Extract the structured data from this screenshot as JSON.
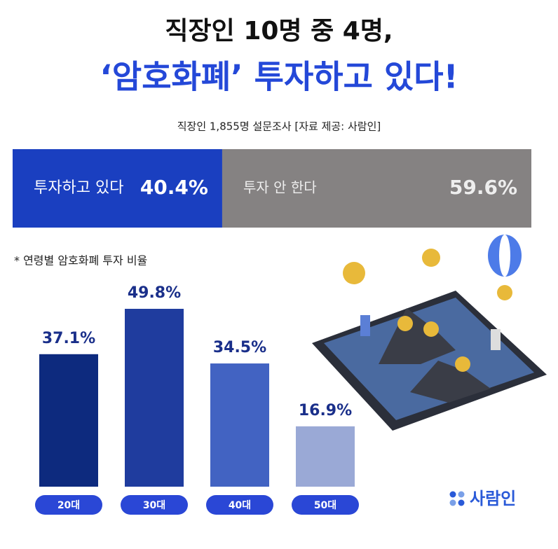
{
  "header": {
    "title_line1": "직장인 10명 중 4명,",
    "title_line2": "‘암호화폐’ 투자하고 있다!",
    "subtitle": "직장인 1,855명 설문조사 [자료 제공: 사람인]"
  },
  "split_bar": {
    "segments": [
      {
        "label": "투자하고 있다",
        "value": 40.4,
        "value_label": "40.4%",
        "color": "#1a3fc0"
      },
      {
        "label": "투자 안 한다",
        "value": 59.6,
        "value_label": "59.6%",
        "color": "#858282"
      }
    ]
  },
  "chart_data": {
    "type": "bar",
    "note": "* 연령별 암호화폐 투자 비율",
    "categories": [
      "20대",
      "30대",
      "40대",
      "50대"
    ],
    "values": [
      37.1,
      49.8,
      34.5,
      16.9
    ],
    "value_labels": [
      "37.1%",
      "49.8%",
      "34.5%",
      "16.9%"
    ],
    "colors": [
      "#0d2a7e",
      "#1f3c9e",
      "#4263c2",
      "#9aa9d6"
    ]
  },
  "logo": "사람인"
}
